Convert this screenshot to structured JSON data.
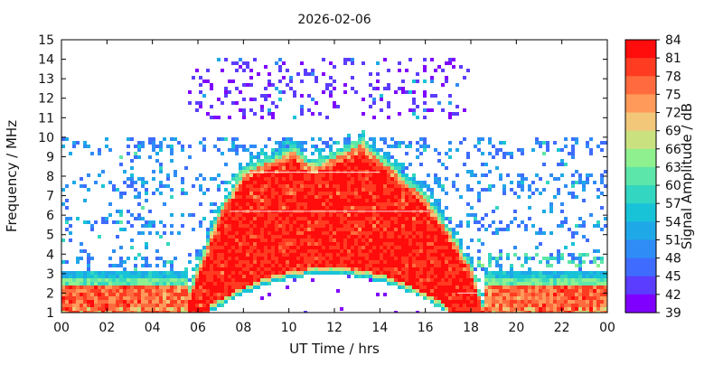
{
  "chart_data": {
    "type": "heatmap",
    "title": "2026-02-06",
    "xlabel": "UT Time / hrs",
    "ylabel": "Frequency / MHz",
    "xlim": [
      0,
      24
    ],
    "ylim": [
      1,
      15
    ],
    "x_ticks": [
      "00",
      "02",
      "04",
      "06",
      "08",
      "10",
      "12",
      "14",
      "16",
      "18",
      "20",
      "22",
      "00"
    ],
    "x_tick_values": [
      0,
      2,
      4,
      6,
      8,
      10,
      12,
      14,
      16,
      18,
      20,
      22,
      24
    ],
    "y_ticks": [
      1,
      2,
      3,
      4,
      5,
      6,
      7,
      8,
      9,
      10,
      11,
      12,
      13,
      14,
      15
    ],
    "colorbar": {
      "label": "Signal Amplitude / dB",
      "range": [
        39,
        84
      ],
      "ticks": [
        39,
        42,
        45,
        48,
        51,
        54,
        57,
        60,
        63,
        66,
        69,
        72,
        75,
        78,
        81,
        84
      ],
      "colors": [
        "#8000ff",
        "#5b3dff",
        "#3f6cff",
        "#2f8cf7",
        "#1fa8e8",
        "#18c3d8",
        "#33d6c0",
        "#5de6a9",
        "#8ef08f",
        "#c9e27f",
        "#f2c77a",
        "#ff9a5a",
        "#ff6b3e",
        "#ff3b22",
        "#ff0c0c"
      ]
    },
    "features": {
      "day_sun_envelope_max_mhz_by_hour": [
        {
          "hour": 5.6,
          "mhz": 2.2
        },
        {
          "hour": 6.0,
          "mhz": 3.5
        },
        {
          "hour": 7.0,
          "mhz": 6.5
        },
        {
          "hour": 8.0,
          "mhz": 8.5
        },
        {
          "hour": 9.0,
          "mhz": 9.0
        },
        {
          "hour": 10.2,
          "mhz": 9.6
        },
        {
          "hour": 11.0,
          "mhz": 8.8
        },
        {
          "hour": 12.0,
          "mhz": 9.3
        },
        {
          "hour": 13.2,
          "mhz": 10.0
        },
        {
          "hour": 14.2,
          "mhz": 9.0
        },
        {
          "hour": 15.0,
          "mhz": 8.2
        },
        {
          "hour": 16.0,
          "mhz": 7.2
        },
        {
          "hour": 17.0,
          "mhz": 5.5
        },
        {
          "hour": 18.0,
          "mhz": 3.6
        },
        {
          "hour": 18.6,
          "mhz": 1.4
        }
      ],
      "day_bottom_gap_arc_mhz_peak": 3.0,
      "night_low_band_mhz": [
        1.0,
        3.2
      ],
      "night_speckle_band_mhz": [
        3.2,
        10.0
      ],
      "upper_speckle_block_hours": [
        5.6,
        18.0
      ],
      "upper_speckle_block_mhz": [
        11.0,
        14.0
      ]
    }
  }
}
